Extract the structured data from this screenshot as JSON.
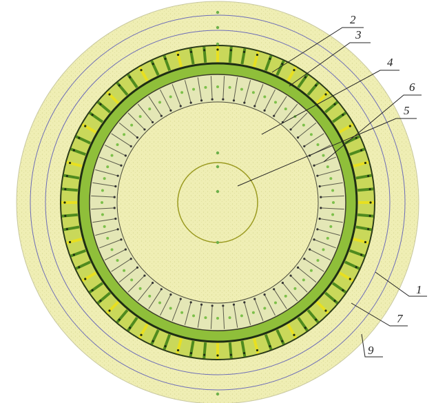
{
  "labels": [
    "2",
    "3",
    "4",
    "6",
    "5",
    "1",
    "7",
    "9"
  ]
}
